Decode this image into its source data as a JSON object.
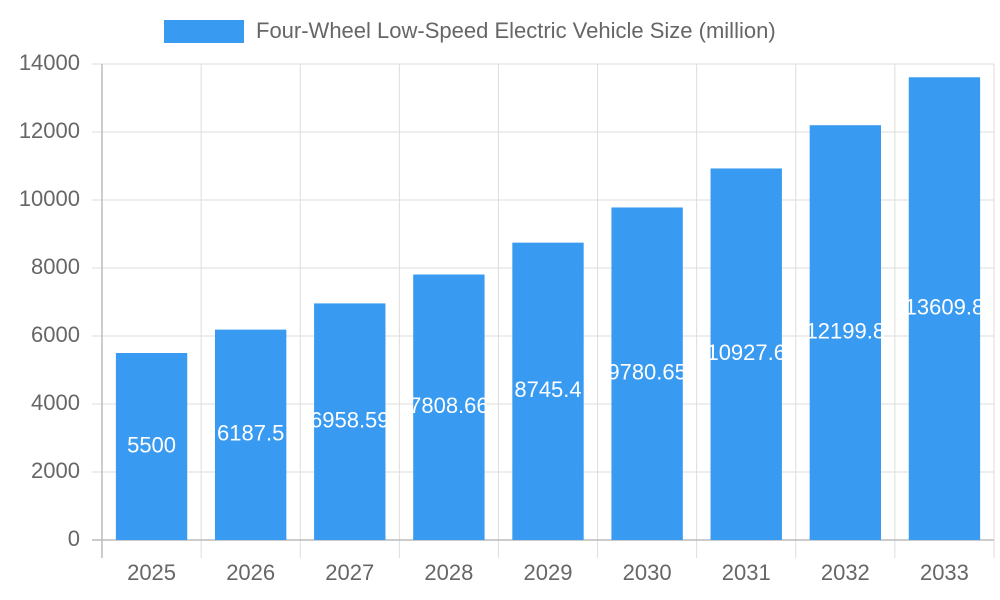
{
  "chart_data": {
    "type": "bar",
    "legend": "Four-Wheel Low-Speed Electric Vehicle Size (million)",
    "categories": [
      "2025",
      "2026",
      "2027",
      "2028",
      "2029",
      "2030",
      "2031",
      "2032",
      "2033"
    ],
    "values": [
      5500,
      6187.5,
      6958.59,
      7808.66,
      8745.4,
      9780.65,
      10927.6,
      12199.8,
      13609.8
    ],
    "color": "#389af0",
    "ylim": [
      0,
      14000
    ],
    "yticks": [
      0,
      2000,
      4000,
      6000,
      8000,
      10000,
      12000,
      14000
    ],
    "grid": true
  }
}
